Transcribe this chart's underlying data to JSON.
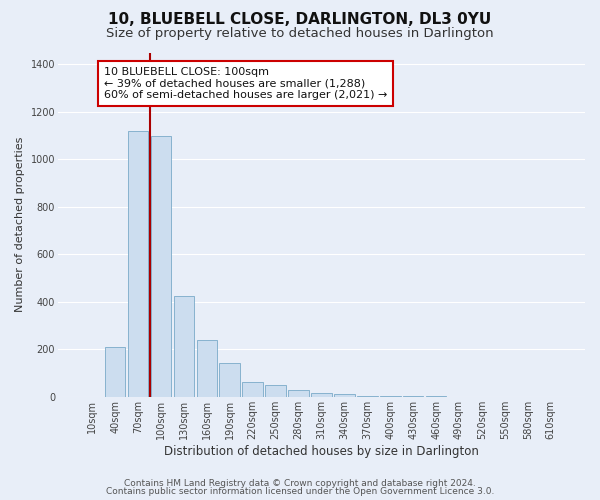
{
  "title": "10, BLUEBELL CLOSE, DARLINGTON, DL3 0YU",
  "subtitle": "Size of property relative to detached houses in Darlington",
  "xlabel": "Distribution of detached houses by size in Darlington",
  "ylabel": "Number of detached properties",
  "bar_labels": [
    "10sqm",
    "40sqm",
    "70sqm",
    "100sqm",
    "130sqm",
    "160sqm",
    "190sqm",
    "220sqm",
    "250sqm",
    "280sqm",
    "310sqm",
    "340sqm",
    "370sqm",
    "400sqm",
    "430sqm",
    "460sqm",
    "490sqm",
    "520sqm",
    "550sqm",
    "580sqm",
    "610sqm"
  ],
  "bar_values": [
    0,
    210,
    1120,
    1100,
    425,
    240,
    143,
    63,
    50,
    30,
    18,
    10,
    5,
    3,
    3,
    2,
    0,
    0,
    0,
    0,
    0
  ],
  "bar_color": "#ccddef",
  "bar_edge_color": "#7aaac8",
  "vline_color": "#aa0000",
  "vline_idx": 3,
  "annotation_text": "10 BLUEBELL CLOSE: 100sqm\n← 39% of detached houses are smaller (1,288)\n60% of semi-detached houses are larger (2,021) →",
  "annotation_box_edge": "#cc0000",
  "annotation_box_bg": "#ffffff",
  "ylim": [
    0,
    1450
  ],
  "yticks": [
    0,
    200,
    400,
    600,
    800,
    1000,
    1200,
    1400
  ],
  "footer1": "Contains HM Land Registry data © Crown copyright and database right 2024.",
  "footer2": "Contains public sector information licensed under the Open Government Licence 3.0.",
  "bg_color": "#e8eef8",
  "grid_color": "#ffffff",
  "title_fontsize": 11,
  "subtitle_fontsize": 9.5,
  "ylabel_fontsize": 8,
  "xlabel_fontsize": 8.5,
  "tick_fontsize": 7,
  "annotation_fontsize": 8,
  "footer_fontsize": 6.5
}
